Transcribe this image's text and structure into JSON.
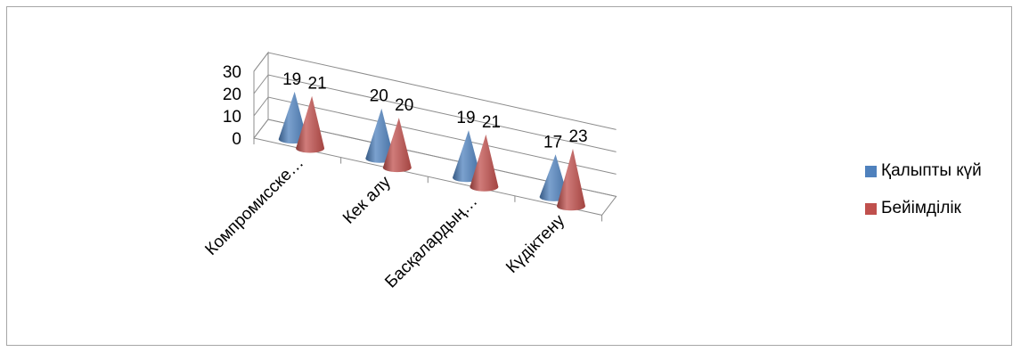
{
  "chart_data": {
    "type": "bar",
    "variant": "3d-cone",
    "categories": [
      "Компромисске…",
      "Кек алу",
      "Басқалардың…",
      "Күдіктену"
    ],
    "series": [
      {
        "name": "Қалыпты күй",
        "values": [
          19,
          20,
          19,
          17
        ],
        "color": "#4f81bd"
      },
      {
        "name": "Бейімділік",
        "values": [
          21,
          20,
          21,
          23
        ],
        "color": "#c0504d"
      }
    ],
    "y_ticks": [
      "0",
      "10",
      "20",
      "30"
    ],
    "ylim": [
      0,
      30
    ],
    "grid": true,
    "legend_position": "right",
    "data_labels": true
  }
}
